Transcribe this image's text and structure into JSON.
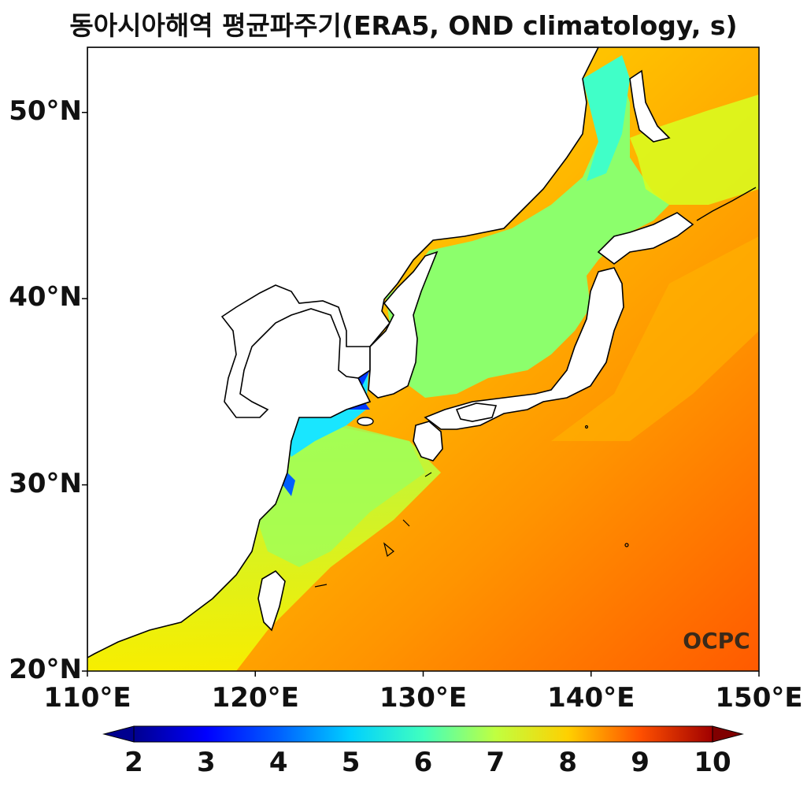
{
  "title": "동아시아해역 평균파주기(ERA5, OND climatology, s)",
  "watermark": "OCPC",
  "map": {
    "lon_range": [
      110,
      150
    ],
    "lat_range": [
      20,
      53.5
    ],
    "lon_ticks": [
      110,
      120,
      130,
      140,
      150
    ],
    "lat_ticks": [
      20,
      30,
      40,
      50
    ],
    "lon_tick_labels": [
      "110°E",
      "120°E",
      "130°E",
      "140°E",
      "150°E"
    ],
    "lat_tick_labels": [
      "20°N",
      "30°N",
      "40°N",
      "50°N"
    ]
  },
  "colorbar": {
    "min": 2,
    "max": 10,
    "ticks": [
      2,
      3,
      4,
      5,
      6,
      7,
      8,
      9,
      10
    ],
    "tick_labels": [
      "2",
      "3",
      "4",
      "5",
      "6",
      "7",
      "8",
      "9",
      "10"
    ],
    "colormap": "jet",
    "extend": "both"
  },
  "colors": {
    "land": "#ffffff",
    "coastline": "#000000",
    "open_ocean": "#ff6a00",
    "marginal_seas": "#6dff8a"
  }
}
